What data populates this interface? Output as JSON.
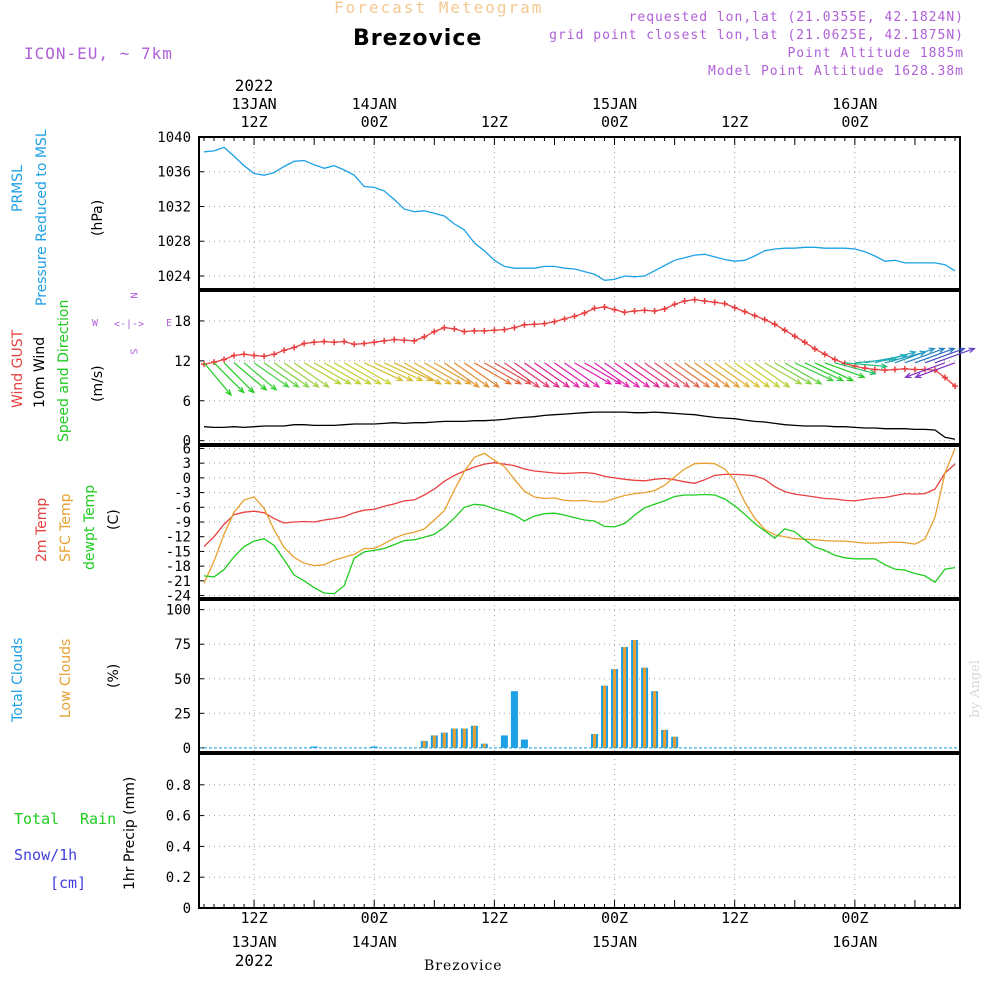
{
  "header": {
    "title": "Forecast Meteogram",
    "station": "Brezovice",
    "model": "ICON-EU, ~ 7km",
    "requested": "requested lon,lat (21.0355E, 42.1824N)",
    "grid": "grid point closest lon,lat (21.0625E, 42.1875N)",
    "point_alt": "Point Altitude 1885m",
    "model_alt": "Model Point Altitude 1628.38m",
    "footer_station": "Brezovice",
    "watermark": "by Angel"
  },
  "time_axis": {
    "ticks": [
      {
        "hour": 12,
        "top": "12Z",
        "bottom": "12Z"
      },
      {
        "hour": 24,
        "top": "00Z",
        "bottom": "00Z"
      },
      {
        "hour": 36,
        "top": "12Z",
        "bottom": "12Z"
      },
      {
        "hour": 48,
        "top": "00Z",
        "bottom": "00Z"
      },
      {
        "hour": 60,
        "top": "12Z",
        "bottom": "12Z"
      },
      {
        "hour": 72,
        "top": "00Z",
        "bottom": "00Z"
      }
    ],
    "dates": [
      {
        "hour": 12,
        "label": "13JAN",
        "year": "2022"
      },
      {
        "hour": 24,
        "label": "14JAN"
      },
      {
        "hour": 48,
        "label": "15JAN"
      },
      {
        "hour": 72,
        "label": "16JAN"
      }
    ],
    "x_range_hours": [
      6.5,
      82.5
    ]
  },
  "labels": {
    "p1_a": "PRMSL",
    "p1_b": "Pressure Reduced to MSL",
    "p1_unit": "(hPa)",
    "p2_a": "Wind GUST",
    "p2_b": "10m Wind",
    "p2_c": "Speed and Direction",
    "p2_unit": "(m/s)",
    "compass_w": "W",
    "compass_e": "E",
    "compass_n": "N",
    "compass_s": "S",
    "compass_arrow": "<-|->",
    "p3_a": "2m Temp",
    "p3_b": "SFC Temp",
    "p3_c": "dewpt Temp",
    "p3_unit": "(C)",
    "p4_a": "Total Clouds",
    "p4_b": "Low Clouds",
    "p4_unit": "(%)",
    "p5_a": "Total",
    "p5_b": "Rain",
    "p5_c": "Snow/1h",
    "p5_d": "[cm]",
    "p5_unit": "1hr Precip (mm)"
  },
  "chart_data": [
    {
      "type": "line",
      "ylim": [
        1022.5,
        1040
      ],
      "yticks": [
        1024,
        1028,
        1032,
        1036,
        1040
      ],
      "x": [
        7,
        8,
        9,
        10,
        11,
        12,
        13,
        14,
        15,
        16,
        17,
        18,
        19,
        20,
        21,
        22,
        23,
        24,
        25,
        26,
        27,
        28,
        29,
        30,
        31,
        32,
        33,
        34,
        35,
        36,
        37,
        38,
        39,
        40,
        41,
        42,
        43,
        44,
        45,
        46,
        47,
        48,
        49,
        50,
        51,
        52,
        53,
        54,
        55,
        56,
        57,
        58,
        59,
        60,
        61,
        62,
        63,
        64,
        65,
        66,
        67,
        68,
        69,
        70,
        71,
        72,
        73,
        74,
        75,
        76,
        77,
        78,
        79,
        80,
        81,
        82
      ],
      "series": [
        {
          "color": "#1ea0e6",
          "values": [
            1038.3,
            1038.4,
            1038.8,
            1037.8,
            1036.7,
            1035.8,
            1035.6,
            1035.9,
            1036.6,
            1037.2,
            1037.3,
            1036.8,
            1036.4,
            1036.7,
            1036.2,
            1035.6,
            1034.3,
            1034.2,
            1033.8,
            1032.8,
            1031.7,
            1031.4,
            1031.5,
            1031.2,
            1030.9,
            1030.0,
            1029.3,
            1027.8,
            1026.9,
            1025.8,
            1025.1,
            1024.9,
            1024.9,
            1024.9,
            1025.1,
            1025.1,
            1024.9,
            1024.8,
            1024.5,
            1024.2,
            1023.5,
            1023.6,
            1024.0,
            1023.9,
            1024.0,
            1024.6,
            1025.2,
            1025.8,
            1026.1,
            1026.4,
            1026.5,
            1026.2,
            1025.9,
            1025.7,
            1025.8,
            1026.3,
            1026.9,
            1027.1,
            1027.2,
            1027.2,
            1027.3,
            1027.3,
            1027.2,
            1027.2,
            1027.2,
            1027.1,
            1026.8,
            1026.3,
            1025.7,
            1025.8,
            1025.5,
            1025.5,
            1025.5,
            1025.5,
            1025.3,
            1024.6
          ]
        }
      ]
    },
    {
      "type": "line",
      "ylim": [
        -0.5,
        22.5
      ],
      "yticks": [
        0,
        6,
        12,
        18
      ],
      "x": [
        7,
        8,
        9,
        10,
        11,
        12,
        13,
        14,
        15,
        16,
        17,
        18,
        19,
        20,
        21,
        22,
        23,
        24,
        25,
        26,
        27,
        28,
        29,
        30,
        31,
        32,
        33,
        34,
        35,
        36,
        37,
        38,
        39,
        40,
        41,
        42,
        43,
        44,
        45,
        46,
        47,
        48,
        49,
        50,
        51,
        52,
        53,
        54,
        55,
        56,
        57,
        58,
        59,
        60,
        61,
        62,
        63,
        64,
        65,
        66,
        67,
        68,
        69,
        70,
        71,
        72,
        73,
        74,
        75,
        76,
        77,
        78,
        79,
        80,
        81,
        82
      ],
      "series": [
        {
          "color": "#e84040",
          "values": [
            11.5,
            11.8,
            12.2,
            12.8,
            13.0,
            12.8,
            12.7,
            13.0,
            13.6,
            14.0,
            14.6,
            14.8,
            14.9,
            14.8,
            14.9,
            14.5,
            14.6,
            14.8,
            15.0,
            15.2,
            15.1,
            15.0,
            15.6,
            16.4,
            17.0,
            16.8,
            16.4,
            16.5,
            16.5,
            16.6,
            16.7,
            17.0,
            17.4,
            17.5,
            17.6,
            17.9,
            18.3,
            18.7,
            19.2,
            19.9,
            20.1,
            19.7,
            19.3,
            19.5,
            19.6,
            19.5,
            19.8,
            20.5,
            21.0,
            21.2,
            21.0,
            20.8,
            20.6,
            20.0,
            19.4,
            18.8,
            18.2,
            17.5,
            16.6,
            15.7,
            14.8,
            13.8,
            13.0,
            12.2,
            11.6,
            11.2,
            10.9,
            10.7,
            10.6,
            10.7,
            10.8,
            10.7,
            10.7,
            10.6,
            9.5,
            8.2
          ]
        },
        {
          "color": "#000000",
          "values": [
            2.1,
            2.0,
            2.0,
            2.1,
            2.0,
            2.1,
            2.2,
            2.2,
            2.2,
            2.4,
            2.4,
            2.3,
            2.3,
            2.3,
            2.4,
            2.5,
            2.5,
            2.5,
            2.6,
            2.7,
            2.6,
            2.7,
            2.7,
            2.8,
            2.9,
            2.9,
            2.9,
            3.0,
            3.0,
            3.1,
            3.2,
            3.4,
            3.5,
            3.6,
            3.8,
            3.9,
            4.0,
            4.1,
            4.2,
            4.3,
            4.3,
            4.3,
            4.3,
            4.2,
            4.2,
            4.3,
            4.2,
            4.1,
            4.0,
            3.9,
            3.7,
            3.5,
            3.4,
            3.3,
            3.1,
            2.9,
            2.8,
            2.6,
            2.4,
            2.3,
            2.2,
            2.2,
            2.2,
            2.1,
            2.1,
            2.0,
            1.9,
            1.9,
            1.8,
            1.8,
            1.8,
            1.7,
            1.7,
            1.6,
            0.5,
            0.2
          ]
        }
      ]
    },
    {
      "type": "line",
      "ylim": [
        -24.5,
        6.5
      ],
      "yticks": [
        -24,
        -21,
        -18,
        -15,
        -12,
        -9,
        -6,
        -3,
        0,
        3,
        6
      ],
      "x": [
        7,
        8,
        9,
        10,
        11,
        12,
        13,
        14,
        15,
        16,
        17,
        18,
        19,
        20,
        21,
        22,
        23,
        24,
        25,
        26,
        27,
        28,
        29,
        30,
        31,
        32,
        33,
        34,
        35,
        36,
        37,
        38,
        39,
        40,
        41,
        42,
        43,
        44,
        45,
        46,
        47,
        48,
        49,
        50,
        51,
        52,
        53,
        54,
        55,
        56,
        57,
        58,
        59,
        60,
        61,
        62,
        63,
        64,
        65,
        66,
        67,
        68,
        69,
        70,
        71,
        72,
        73,
        74,
        75,
        76,
        77,
        78,
        79,
        80,
        81,
        82
      ],
      "series": [
        {
          "color": "#e84040",
          "values": [
            -14.0,
            -12.0,
            -9.5,
            -7.5,
            -7.0,
            -6.8,
            -7.1,
            -8.3,
            -9.2,
            -9.0,
            -8.9,
            -9.0,
            -8.6,
            -8.3,
            -7.9,
            -7.1,
            -6.6,
            -6.4,
            -5.8,
            -5.3,
            -4.7,
            -4.5,
            -3.5,
            -2.3,
            -0.7,
            0.5,
            1.4,
            2.2,
            2.8,
            3.1,
            2.8,
            2.5,
            1.8,
            1.4,
            1.2,
            1.0,
            0.9,
            1.0,
            1.1,
            0.9,
            0.3,
            0.0,
            -0.3,
            -0.5,
            -0.6,
            -0.3,
            -0.1,
            -0.4,
            -0.8,
            -1.1,
            -0.4,
            0.5,
            0.7,
            0.7,
            0.6,
            0.4,
            -0.3,
            -1.8,
            -2.8,
            -3.3,
            -3.6,
            -3.9,
            -4.2,
            -4.3,
            -4.6,
            -4.7,
            -4.4,
            -4.1,
            -4.0,
            -3.6,
            -3.2,
            -3.3,
            -3.2,
            -2.3,
            1.0,
            2.8
          ]
        },
        {
          "color": "#e8a030",
          "values": [
            -21.5,
            -17.0,
            -11.5,
            -7.0,
            -4.5,
            -3.9,
            -6.2,
            -10.6,
            -14.2,
            -16.2,
            -17.4,
            -17.9,
            -17.7,
            -16.8,
            -16.2,
            -15.6,
            -14.4,
            -14.4,
            -13.4,
            -12.3,
            -11.5,
            -11.1,
            -10.4,
            -8.6,
            -6.7,
            -2.5,
            1.3,
            4.2,
            5.0,
            3.6,
            2.3,
            -0.3,
            -2.7,
            -3.9,
            -4.2,
            -4.1,
            -4.6,
            -4.7,
            -4.6,
            -4.9,
            -4.9,
            -4.2,
            -3.6,
            -3.2,
            -3.0,
            -2.6,
            -1.5,
            0.2,
            1.8,
            2.9,
            3.0,
            2.9,
            1.8,
            -0.5,
            -4.9,
            -8.2,
            -10.5,
            -11.6,
            -12.0,
            -12.4,
            -12.5,
            -12.6,
            -12.8,
            -12.9,
            -12.9,
            -13.1,
            -13.3,
            -13.3,
            -13.2,
            -13.1,
            -13.2,
            -13.5,
            -12.5,
            -8.0,
            1.0,
            6.0
          ]
        },
        {
          "color": "#20cc20",
          "values": [
            -20.0,
            -20.2,
            -18.7,
            -16.1,
            -14.0,
            -12.9,
            -12.4,
            -13.8,
            -16.7,
            -19.8,
            -21.0,
            -22.4,
            -23.5,
            -23.6,
            -22.0,
            -16.4,
            -15.1,
            -14.8,
            -14.4,
            -13.6,
            -12.8,
            -12.6,
            -12.1,
            -11.5,
            -10.1,
            -8.2,
            -6.0,
            -5.4,
            -5.6,
            -6.3,
            -6.9,
            -7.6,
            -8.8,
            -7.8,
            -7.3,
            -7.2,
            -7.6,
            -8.1,
            -8.6,
            -8.8,
            -9.9,
            -10.0,
            -9.3,
            -7.6,
            -6.1,
            -5.4,
            -4.7,
            -3.8,
            -3.5,
            -3.5,
            -3.4,
            -3.5,
            -4.3,
            -5.7,
            -7.4,
            -9.3,
            -10.8,
            -12.3,
            -10.4,
            -11.0,
            -12.6,
            -14.1,
            -14.8,
            -15.8,
            -16.3,
            -16.5,
            -16.5,
            -16.5,
            -17.7,
            -18.6,
            -18.8,
            -19.5,
            -20.0,
            -21.3,
            -18.6,
            -18.3
          ]
        }
      ]
    },
    {
      "type": "bar",
      "ylim": [
        -3,
        107
      ],
      "yticks": [
        0,
        25,
        50,
        75,
        100
      ],
      "series": [
        {
          "name": "Total Clouds",
          "color": "#1ea0e6",
          "x": [
            18,
            24,
            29,
            30,
            31,
            32,
            33,
            34,
            35,
            37,
            38,
            39,
            46,
            47,
            48,
            49,
            50,
            51,
            52,
            53,
            54
          ],
          "values": [
            1,
            1,
            5,
            9,
            11,
            14,
            14,
            16,
            3,
            9,
            41,
            6,
            10,
            45,
            57,
            73,
            78,
            58,
            41,
            13,
            8
          ]
        },
        {
          "name": "Low Clouds",
          "color": "#e8a030",
          "x": [
            29,
            30,
            31,
            32,
            33,
            34,
            35,
            46,
            47,
            48,
            49,
            50,
            51,
            52,
            53,
            54
          ],
          "values": [
            5,
            9,
            11,
            14,
            14,
            16,
            3,
            10,
            45,
            57,
            73,
            78,
            58,
            41,
            13,
            8
          ]
        }
      ]
    },
    {
      "type": "bar",
      "ylim": [
        0,
        1
      ],
      "yticks": [
        0,
        0.2,
        0.4,
        0.6,
        0.8
      ],
      "series": []
    }
  ],
  "wind_arrows": {
    "description_hint": "10m wind arrows (direction the wind blows toward, speed m/s)",
    "x": [
      7,
      8,
      9,
      10,
      11,
      12,
      13,
      14,
      15,
      16,
      17,
      18,
      19,
      20,
      21,
      22,
      23,
      24,
      25,
      26,
      27,
      28,
      29,
      30,
      31,
      32,
      33,
      34,
      35,
      36,
      37,
      38,
      39,
      40,
      41,
      42,
      43,
      44,
      45,
      46,
      47,
      48,
      49,
      50,
      51,
      52,
      53,
      54,
      55,
      56,
      57,
      58,
      59,
      60,
      61,
      62,
      63,
      64,
      65,
      66,
      67,
      68,
      69,
      70,
      71,
      72,
      73,
      74,
      75,
      76,
      77,
      78,
      79,
      80,
      81,
      82
    ],
    "to_deg": [
      140,
      135,
      135,
      130,
      130,
      125,
      125,
      125,
      125,
      125,
      120,
      120,
      120,
      120,
      120,
      120,
      115,
      115,
      115,
      115,
      120,
      120,
      120,
      120,
      125,
      125,
      125,
      120,
      120,
      120,
      125,
      125,
      125,
      125,
      125,
      125,
      125,
      120,
      120,
      125,
      125,
      125,
      125,
      125,
      125,
      125,
      125,
      125,
      125,
      125,
      125,
      125,
      125,
      125,
      125,
      125,
      120,
      120,
      120,
      115,
      115,
      115,
      110,
      105,
      95,
      85,
      80,
      75,
      75,
      70,
      70,
      70,
      70,
      70,
      250,
      250
    ],
    "colors": [
      "#20cc20",
      "#20cc20",
      "#20cc20",
      "#20cc20",
      "#30d030",
      "#40d040",
      "#60d040",
      "#80d040",
      "#a0d040",
      "#a0d040",
      "#b0d030",
      "#b0d030",
      "#c0d030",
      "#c0d030",
      "#c8d030",
      "#c8d030",
      "#d0c030",
      "#d0c030",
      "#d8c030",
      "#d8b030",
      "#e0b030",
      "#e0b030",
      "#e0a030",
      "#e0a030",
      "#e09030",
      "#e09030",
      "#e08030",
      "#e07030",
      "#e06040",
      "#e05050",
      "#e04060",
      "#e03070",
      "#e02080",
      "#e02090",
      "#e020a0",
      "#e020a0",
      "#e020b0",
      "#e020b0",
      "#e020b0",
      "#e020b0",
      "#e020b0",
      "#e020a0",
      "#e02090",
      "#e03080",
      "#e04070",
      "#e05060",
      "#e06050",
      "#e07040",
      "#e08030",
      "#e09030",
      "#e0a030",
      "#e0b030",
      "#d8c030",
      "#d0c830",
      "#c0d030",
      "#b0d030",
      "#a0d040",
      "#80d040",
      "#60d040",
      "#40d040",
      "#30d030",
      "#20cc20",
      "#20cc20",
      "#20c060",
      "#20c080",
      "#20b0a0",
      "#20b0b0",
      "#20a8c0",
      "#20a0c0",
      "#2090c0",
      "#2080c0",
      "#2070c0",
      "#4050c0",
      "#6040c0",
      "#8030c0",
      "#8030c0"
    ]
  }
}
